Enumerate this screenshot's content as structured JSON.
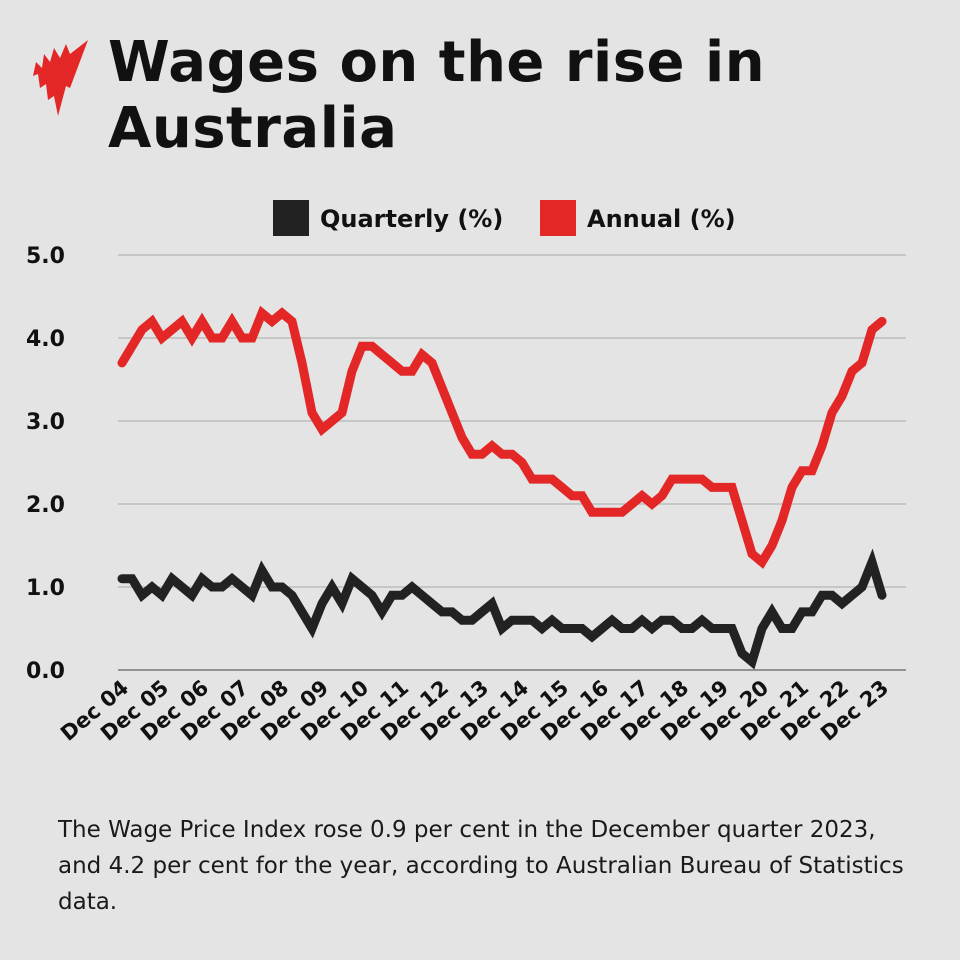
{
  "title": "Wages on the rise in Australia",
  "caption": "The Wage Price Index rose 0.9 per cent in the December quarter 2023, and 4.2 per cent for the year, according to Australian Bureau of Statistics data.",
  "chart_data": {
    "type": "line",
    "title": "Wages on the rise in Australia",
    "xlabel": "",
    "ylabel": "",
    "ylim": [
      0,
      5
    ],
    "yticks": [
      "0.0",
      "1.0",
      "2.0",
      "3.0",
      "4.0",
      "5.0"
    ],
    "xticks": [
      "Dec 04",
      "Dec 05",
      "Dec 06",
      "Dec 07",
      "Dec 08",
      "Dec 09",
      "Dec 10",
      "Dec 11",
      "Dec 12",
      "Dec 13",
      "Dec 14",
      "Dec 15",
      "Dec 16",
      "Dec 17",
      "Dec 18",
      "Dec 19",
      "Dec 20",
      "Dec 21",
      "Dec 22",
      "Dec 23"
    ],
    "x_range": [
      "Dec 04",
      "Dec 23"
    ],
    "x_frequency": "quarterly",
    "grid": true,
    "legend_position": "top",
    "series": [
      {
        "name": "Quarterly (%)",
        "color": "#222222",
        "values": [
          1.1,
          1.1,
          0.9,
          1.0,
          0.9,
          1.1,
          1.0,
          0.9,
          1.1,
          1.0,
          1.0,
          1.1,
          1.0,
          0.9,
          1.2,
          1.0,
          1.0,
          0.9,
          0.7,
          0.5,
          0.8,
          1.0,
          0.8,
          1.1,
          1.0,
          0.9,
          0.7,
          0.9,
          0.9,
          1.0,
          0.9,
          0.8,
          0.7,
          0.7,
          0.6,
          0.6,
          0.7,
          0.8,
          0.5,
          0.6,
          0.6,
          0.6,
          0.5,
          0.6,
          0.5,
          0.5,
          0.5,
          0.4,
          0.5,
          0.6,
          0.5,
          0.5,
          0.6,
          0.5,
          0.6,
          0.6,
          0.5,
          0.5,
          0.6,
          0.5,
          0.5,
          0.5,
          0.2,
          0.1,
          0.5,
          0.7,
          0.5,
          0.5,
          0.7,
          0.7,
          0.9,
          0.9,
          0.8,
          0.9,
          1.0,
          1.3,
          0.9
        ]
      },
      {
        "name": "Annual (%)",
        "color": "#e32626",
        "values": [
          3.7,
          3.9,
          4.1,
          4.2,
          4.0,
          4.1,
          4.2,
          4.0,
          4.2,
          4.0,
          4.0,
          4.2,
          4.0,
          4.0,
          4.3,
          4.2,
          4.3,
          4.2,
          3.7,
          3.1,
          2.9,
          3.0,
          3.1,
          3.6,
          3.9,
          3.9,
          3.8,
          3.7,
          3.6,
          3.6,
          3.8,
          3.7,
          3.4,
          3.1,
          2.8,
          2.6,
          2.6,
          2.7,
          2.6,
          2.6,
          2.5,
          2.3,
          2.3,
          2.3,
          2.2,
          2.1,
          2.1,
          1.9,
          1.9,
          1.9,
          1.9,
          2.0,
          2.1,
          2.0,
          2.1,
          2.3,
          2.3,
          2.3,
          2.3,
          2.2,
          2.2,
          2.2,
          1.8,
          1.4,
          1.3,
          1.5,
          1.8,
          2.2,
          2.4,
          2.4,
          2.7,
          3.1,
          3.3,
          3.6,
          3.7,
          4.1,
          4.2
        ]
      }
    ]
  },
  "logo_color": "#e32626"
}
